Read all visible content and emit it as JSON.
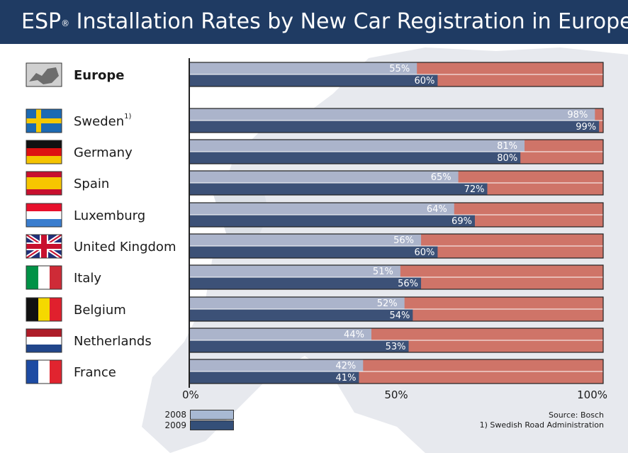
{
  "header": {
    "title_main": "ESP",
    "title_sup": "®",
    "title_rest": " Installation Rates by New Car Registration in Europe"
  },
  "colors": {
    "header_bg": "#1f3b63",
    "series_2008": "#a8b9d3",
    "series_2009": "#344f78",
    "remainder": "#cf7468"
  },
  "chart_data": {
    "type": "bar",
    "orientation": "horizontal",
    "title": "ESP® Installation Rates by New Car Registration in Europe",
    "categories": [
      "Europe",
      "Sweden",
      "Germany",
      "Spain",
      "Luxemburg",
      "United Kingdom",
      "Italy",
      "Belgium",
      "Netherlands",
      "France"
    ],
    "category_notes": [
      "",
      "1)",
      "",
      "",
      "",
      "",
      "",
      "",
      "",
      ""
    ],
    "series": [
      {
        "name": "2008",
        "values": [
          55,
          98,
          81,
          65,
          64,
          56,
          51,
          52,
          44,
          42
        ]
      },
      {
        "name": "2009",
        "values": [
          60,
          99,
          80,
          72,
          69,
          60,
          56,
          54,
          53,
          41
        ]
      }
    ],
    "value_labels_2008": [
      "55%",
      "98%",
      "81%",
      "65%",
      "64%",
      "56%",
      "51%",
      "52%",
      "44%",
      "42%"
    ],
    "value_labels_2009": [
      "60%",
      "99%",
      "80%",
      "72%",
      "69%",
      "60%",
      "56%",
      "54%",
      "53%",
      "41%"
    ],
    "xlim": [
      0,
      100
    ],
    "x_ticks": [
      "0%",
      "50%",
      "100%"
    ],
    "legend_position": "bottom-left",
    "grid": false
  },
  "flags": [
    "europe-map-icon",
    "sweden-flag-icon",
    "germany-flag-icon",
    "spain-flag-icon",
    "luxemburg-flag-icon",
    "uk-flag-icon",
    "italy-flag-icon",
    "belgium-flag-icon",
    "netherlands-flag-icon",
    "france-flag-icon"
  ],
  "legend": {
    "label_2008": "2008",
    "label_2009": "2009"
  },
  "source": {
    "line1": "Source: Bosch",
    "line2": "1) Swedish Road Administration"
  }
}
